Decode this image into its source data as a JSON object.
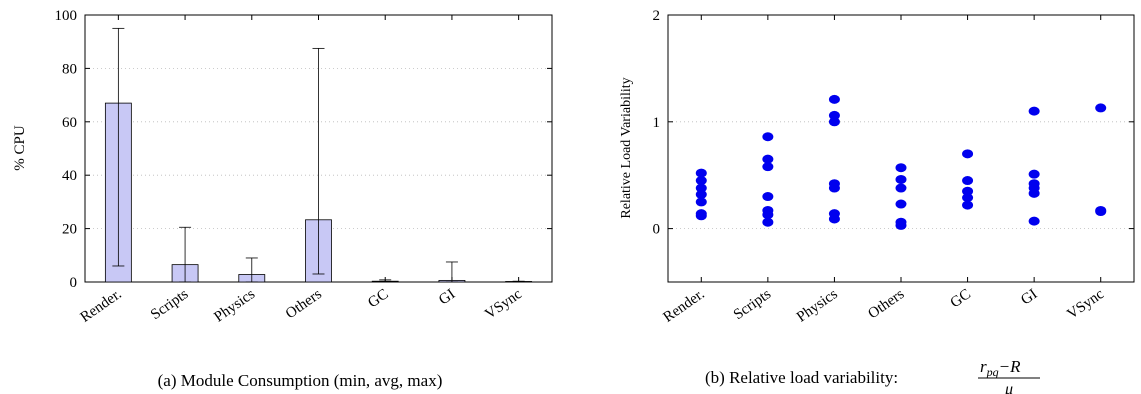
{
  "chart_data": [
    {
      "type": "bar",
      "caption": "(a) Module Consumption (min, avg, max)",
      "ylabel": "% CPU",
      "xlabel": "",
      "ylim": [
        0,
        100
      ],
      "yticks": [
        0,
        20,
        40,
        60,
        80,
        100
      ],
      "grid": "horizontal dotted",
      "categories": [
        "Render.",
        "Scripts",
        "Physics",
        "Others",
        "GC",
        "GI",
        "VSync"
      ],
      "series": [
        {
          "values": [
            67,
            6.5,
            2.8,
            23.3,
            0.3,
            0.6,
            0.2
          ],
          "min": [
            6,
            0,
            0,
            3,
            0,
            0,
            0
          ],
          "max": [
            95,
            20.5,
            9,
            87.5,
            0.8,
            7.5,
            0.3
          ]
        }
      ],
      "bar_fill": "#c8c8f5",
      "bar_stroke": "#000000"
    },
    {
      "type": "scatter",
      "caption_prefix": "(b) Relative load variability: ",
      "formula": {
        "numerator": "r",
        "numerator_sub": "pq",
        "numerator_rest": "−R",
        "denominator": "μ"
      },
      "ylabel": "Relative Load Variability",
      "xlabel": "",
      "ylim": [
        -0.5,
        2
      ],
      "yticks": [
        0,
        1,
        2
      ],
      "grid": "horizontal dotted",
      "categories": [
        "Render.",
        "Scripts",
        "Physics",
        "Others",
        "GC",
        "GI",
        "VSync"
      ],
      "points": [
        [
          0.52,
          0.45,
          0.38,
          0.32,
          0.25,
          0.14,
          0.12
        ],
        [
          0.86,
          0.65,
          0.58,
          0.3,
          0.17,
          0.13,
          0.06
        ],
        [
          1.21,
          1.06,
          1.0,
          0.42,
          0.38,
          0.14,
          0.09
        ],
        [
          0.57,
          0.46,
          0.38,
          0.23,
          0.06,
          0.03
        ],
        [
          0.7,
          0.45,
          0.35,
          0.29,
          0.22
        ],
        [
          1.1,
          0.51,
          0.42,
          0.38,
          0.33,
          0.07
        ],
        [
          1.13,
          0.17,
          0.16
        ]
      ],
      "marker_color": "#0000ee"
    }
  ]
}
